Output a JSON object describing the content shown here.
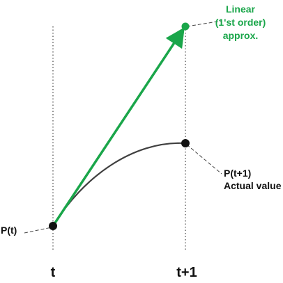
{
  "axis": {
    "t_label": "t",
    "t1_label": "t+1"
  },
  "points": {
    "pt_label": "P(t)",
    "actual": {
      "line1": "P(t+1)",
      "line2": "Actual value"
    },
    "linear": {
      "line1": "Linear",
      "line2": "(1'st order)",
      "line3": "approx."
    }
  },
  "colors": {
    "linear": "#1aa64a",
    "curve": "#404040",
    "points": "#111111",
    "guides": "#444444",
    "text": "#111111"
  }
}
